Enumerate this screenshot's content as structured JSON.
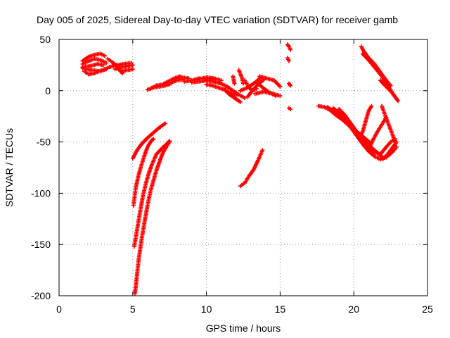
{
  "chart_data": {
    "type": "scatter",
    "title": "Day 005 of 2025, Sidereal Day-to-day VTEC variation (SDTVAR) for receiver gamb",
    "xlabel": "GPS time / hours",
    "ylabel": "SDTVAR / TECUs",
    "xlim": [
      0,
      25
    ],
    "ylim": [
      -200,
      50
    ],
    "xticks": [
      "0",
      "5",
      "10",
      "15",
      "20",
      "25"
    ],
    "xtick_values": [
      0,
      5,
      10,
      15,
      20,
      25
    ],
    "yticks": [
      "50",
      "0",
      "-50",
      "-100",
      "-150",
      "-200"
    ],
    "ytick_values": [
      50,
      0,
      -50,
      -100,
      -150,
      -200
    ],
    "grid": true,
    "marker": "+",
    "color": "#ff0000",
    "segments": [
      [
        [
          1.6,
          29
        ],
        [
          2.0,
          33
        ],
        [
          2.4,
          35
        ],
        [
          2.8,
          36
        ],
        [
          3.1,
          34
        ]
      ],
      [
        [
          1.6,
          26
        ],
        [
          2.0,
          29
        ],
        [
          2.4,
          31
        ],
        [
          2.8,
          30
        ],
        [
          3.2,
          27
        ]
      ],
      [
        [
          1.6,
          23
        ],
        [
          2.1,
          24
        ],
        [
          2.6,
          26
        ],
        [
          3.0,
          25
        ]
      ],
      [
        [
          1.7,
          19
        ],
        [
          2.0,
          16
        ],
        [
          2.4,
          17
        ],
        [
          2.9,
          20
        ],
        [
          3.3,
          22
        ]
      ],
      [
        [
          1.6,
          22
        ],
        [
          2.2,
          20
        ],
        [
          2.8,
          19
        ],
        [
          3.2,
          21
        ]
      ],
      [
        [
          3.3,
          31
        ],
        [
          3.6,
          28
        ],
        [
          3.9,
          24
        ],
        [
          4.1,
          20
        ],
        [
          4.3,
          17
        ]
      ],
      [
        [
          3.4,
          23
        ],
        [
          3.9,
          25
        ],
        [
          4.4,
          26
        ],
        [
          4.9,
          27
        ]
      ],
      [
        [
          3.8,
          21
        ],
        [
          4.2,
          23
        ],
        [
          4.6,
          24
        ],
        [
          5.0,
          25
        ]
      ],
      [
        [
          4.2,
          19
        ],
        [
          4.6,
          20
        ],
        [
          5.0,
          21
        ]
      ],
      [
        [
          5.0,
          -66
        ],
        [
          5.3,
          -58
        ],
        [
          5.6,
          -52
        ],
        [
          6.0,
          -46
        ],
        [
          6.4,
          -41
        ],
        [
          6.8,
          -36
        ],
        [
          7.2,
          -32
        ]
      ],
      [
        [
          5.05,
          -112
        ],
        [
          5.2,
          -95
        ],
        [
          5.4,
          -82
        ],
        [
          5.6,
          -72
        ],
        [
          5.8,
          -63
        ],
        [
          6.0,
          -55
        ],
        [
          6.2,
          -50
        ],
        [
          6.4,
          -47
        ]
      ],
      [
        [
          5.1,
          -152
        ],
        [
          5.3,
          -135
        ],
        [
          5.5,
          -118
        ],
        [
          5.7,
          -102
        ],
        [
          5.9,
          -90
        ],
        [
          6.1,
          -80
        ],
        [
          6.3,
          -72
        ],
        [
          6.6,
          -62
        ],
        [
          7.0,
          -56
        ],
        [
          7.3,
          -52
        ],
        [
          7.5,
          -49
        ]
      ],
      [
        [
          5.15,
          -198
        ],
        [
          5.25,
          -185
        ],
        [
          5.4,
          -165
        ],
        [
          5.6,
          -145
        ],
        [
          5.8,
          -128
        ],
        [
          6.0,
          -112
        ],
        [
          6.2,
          -98
        ],
        [
          6.4,
          -88
        ],
        [
          6.6,
          -78
        ],
        [
          6.8,
          -70
        ],
        [
          7.0,
          -62
        ],
        [
          7.3,
          -54
        ],
        [
          7.5,
          -50
        ]
      ],
      [
        [
          6.0,
          1
        ],
        [
          6.4,
          3
        ],
        [
          6.8,
          4
        ],
        [
          7.2,
          5
        ],
        [
          7.6,
          7
        ]
      ],
      [
        [
          6.2,
          2
        ],
        [
          6.6,
          5
        ],
        [
          7.0,
          6
        ],
        [
          7.4,
          9
        ],
        [
          7.8,
          12
        ],
        [
          8.2,
          14
        ]
      ],
      [
        [
          7.8,
          11
        ],
        [
          8.3,
          13
        ],
        [
          8.8,
          12
        ]
      ],
      [
        [
          7.6,
          8
        ],
        [
          8.0,
          10
        ],
        [
          8.4,
          11
        ]
      ],
      [
        [
          8.5,
          9
        ],
        [
          9.0,
          10
        ],
        [
          9.5,
          12
        ],
        [
          10.0,
          11
        ],
        [
          10.5,
          12
        ]
      ],
      [
        [
          9.0,
          8
        ],
        [
          9.5,
          9
        ],
        [
          10.0,
          10
        ],
        [
          10.5,
          9
        ],
        [
          11.0,
          7
        ]
      ],
      [
        [
          9.5,
          11
        ],
        [
          10.0,
          13
        ],
        [
          10.5,
          12
        ],
        [
          11.0,
          10
        ]
      ],
      [
        [
          10.0,
          6
        ],
        [
          10.4,
          5
        ],
        [
          10.8,
          3
        ],
        [
          11.2,
          1
        ],
        [
          11.6,
          -2
        ],
        [
          12.0,
          -5
        ]
      ],
      [
        [
          10.5,
          9
        ],
        [
          11.0,
          7
        ],
        [
          11.4,
          4
        ],
        [
          11.8,
          0
        ],
        [
          12.2,
          -4
        ],
        [
          12.6,
          -7
        ]
      ],
      [
        [
          11.2,
          2
        ],
        [
          11.5,
          -3
        ],
        [
          11.9,
          -7
        ],
        [
          12.3,
          -11
        ]
      ],
      [
        [
          11.8,
          14
        ],
        [
          11.9,
          7
        ]
      ],
      [
        [
          12.2,
          20
        ],
        [
          12.4,
          13
        ],
        [
          12.5,
          7
        ]
      ],
      [
        [
          12.6,
          10
        ],
        [
          12.9,
          3
        ],
        [
          13.1,
          0
        ],
        [
          13.4,
          2
        ]
      ],
      [
        [
          12.8,
          -6
        ],
        [
          13.1,
          0
        ],
        [
          13.5,
          6
        ],
        [
          13.9,
          11
        ]
      ],
      [
        [
          12.3,
          0
        ],
        [
          12.8,
          3
        ],
        [
          13.3,
          8
        ],
        [
          13.7,
          13
        ]
      ],
      [
        [
          13.5,
          7
        ],
        [
          13.9,
          2
        ],
        [
          14.3,
          -2
        ],
        [
          14.7,
          -5
        ]
      ],
      [
        [
          13.6,
          14
        ],
        [
          14.1,
          12
        ],
        [
          14.6,
          10
        ],
        [
          15.0,
          4
        ]
      ],
      [
        [
          13.3,
          -3
        ],
        [
          13.9,
          -1
        ],
        [
          14.5,
          -3
        ],
        [
          15.0,
          -5
        ]
      ],
      [
        [
          12.3,
          -93
        ],
        [
          12.6,
          -90
        ],
        [
          12.9,
          -83
        ],
        [
          13.2,
          -77
        ],
        [
          13.5,
          -68
        ],
        [
          13.8,
          -58
        ]
      ],
      [
        [
          15.5,
          45
        ],
        [
          15.6,
          43
        ],
        [
          15.7,
          40
        ]
      ],
      [
        [
          15.5,
          32
        ],
        [
          15.6,
          29
        ]
      ],
      [
        [
          15.6,
          7
        ],
        [
          15.7,
          5
        ]
      ],
      [
        [
          15.6,
          -17
        ],
        [
          15.7,
          -18
        ]
      ],
      [
        [
          17.6,
          -15
        ],
        [
          18.0,
          -16
        ],
        [
          18.4,
          -19
        ],
        [
          18.8,
          -24
        ],
        [
          19.2,
          -28
        ],
        [
          19.6,
          -33
        ],
        [
          20.0,
          -38
        ],
        [
          20.4,
          -42
        ],
        [
          20.8,
          -47
        ],
        [
          21.2,
          -52
        ]
      ],
      [
        [
          18.2,
          -16
        ],
        [
          18.6,
          -20
        ],
        [
          19.0,
          -25
        ],
        [
          19.4,
          -30
        ],
        [
          19.8,
          -36
        ],
        [
          20.2,
          -42
        ],
        [
          20.6,
          -47
        ],
        [
          21.0,
          -53
        ],
        [
          21.4,
          -58
        ],
        [
          21.8,
          -63
        ],
        [
          22.0,
          -66
        ]
      ],
      [
        [
          18.6,
          -17
        ],
        [
          19.0,
          -22
        ],
        [
          19.4,
          -28
        ],
        [
          19.8,
          -36
        ],
        [
          20.2,
          -44
        ],
        [
          20.6,
          -52
        ],
        [
          21.0,
          -59
        ],
        [
          21.4,
          -64
        ],
        [
          21.8,
          -67
        ],
        [
          22.2,
          -65
        ],
        [
          22.6,
          -60
        ],
        [
          22.9,
          -55
        ]
      ],
      [
        [
          19.0,
          -18
        ],
        [
          19.4,
          -24
        ],
        [
          19.8,
          -32
        ],
        [
          20.2,
          -40
        ],
        [
          20.6,
          -48
        ],
        [
          21.0,
          -56
        ],
        [
          21.4,
          -60
        ],
        [
          21.8,
          -62
        ]
      ],
      [
        [
          20.4,
          -45
        ],
        [
          20.6,
          -40
        ],
        [
          20.8,
          -30
        ],
        [
          21.0,
          -20
        ],
        [
          21.2,
          -15
        ]
      ],
      [
        [
          21.0,
          -57
        ],
        [
          21.3,
          -48
        ],
        [
          21.6,
          -40
        ],
        [
          21.9,
          -33
        ],
        [
          22.2,
          -26
        ]
      ],
      [
        [
          21.8,
          -62
        ],
        [
          22.2,
          -55
        ],
        [
          22.5,
          -50
        ],
        [
          22.8,
          -47
        ]
      ],
      [
        [
          21.9,
          -15
        ],
        [
          22.2,
          -27
        ],
        [
          22.5,
          -38
        ],
        [
          22.8,
          -50
        ]
      ],
      [
        [
          22.0,
          -66
        ],
        [
          22.3,
          -62
        ],
        [
          22.6,
          -56
        ],
        [
          22.9,
          -50
        ]
      ],
      [
        [
          20.5,
          43
        ],
        [
          20.7,
          38
        ],
        [
          21.0,
          32
        ],
        [
          21.4,
          26
        ],
        [
          21.8,
          18
        ],
        [
          22.2,
          10
        ],
        [
          22.5,
          5
        ]
      ],
      [
        [
          20.6,
          36
        ],
        [
          21.0,
          30
        ],
        [
          21.4,
          23
        ],
        [
          21.8,
          16
        ],
        [
          22.2,
          8
        ],
        [
          22.6,
          -2
        ],
        [
          23.0,
          -10
        ]
      ],
      [
        [
          21.8,
          10
        ],
        [
          22.2,
          4
        ],
        [
          22.6,
          -2
        ],
        [
          22.9,
          -8
        ]
      ]
    ]
  }
}
